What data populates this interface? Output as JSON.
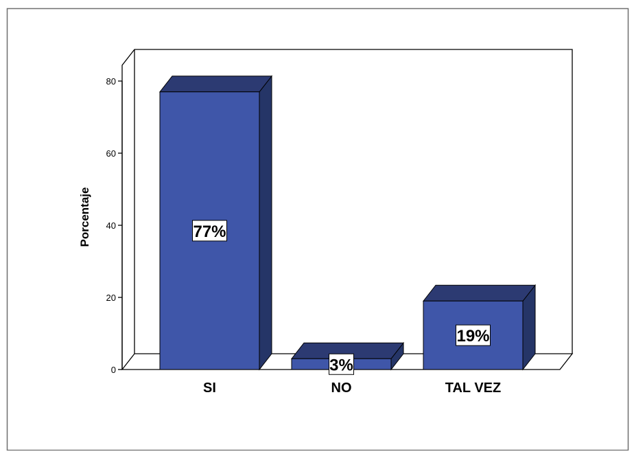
{
  "chart_data": {
    "type": "bar",
    "categories": [
      "SI",
      "NO",
      "TAL VEZ"
    ],
    "values": [
      77,
      3,
      19
    ],
    "data_labels": [
      "77%",
      "3%",
      "19%"
    ],
    "title": "",
    "xlabel": "",
    "ylabel": "Porcentaje",
    "ylim": [
      0,
      80
    ],
    "yticks": [
      0,
      20,
      40,
      60,
      80
    ],
    "ytick_labels": [
      "0",
      "20",
      "40",
      "60",
      "80"
    ],
    "grid": false,
    "three_d": true,
    "colors": {
      "bar_front": "#3f56a9",
      "bar_top": "#2c3a72",
      "bar_side": "#253567",
      "outline": "#000000"
    }
  }
}
